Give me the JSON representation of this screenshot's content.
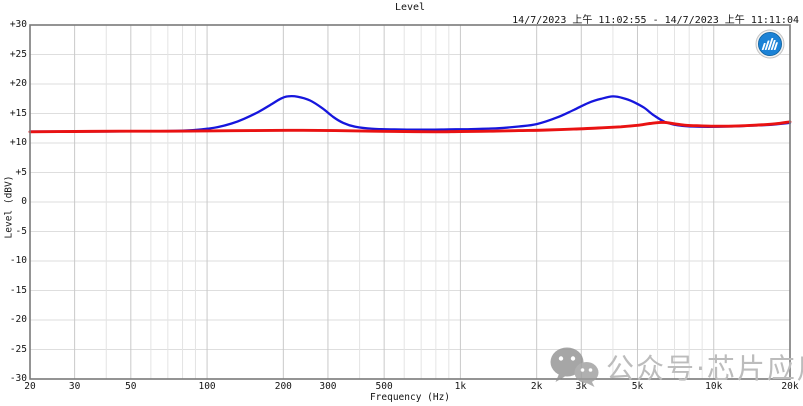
{
  "header": {
    "title": "Level",
    "timestamp": "14/7/2023 上午 11:02:55 - 14/7/2023 上午 11:11:04"
  },
  "logo": {
    "name": "audio-analyzer-logo",
    "color": "#1b82d6"
  },
  "watermark": {
    "text": "公众号·芯片应用"
  },
  "chart_data": {
    "type": "line",
    "title": "Level",
    "xlabel": "Frequency (Hz)",
    "ylabel": "Level (dBV)",
    "x_scale": "log",
    "xlim": [
      20,
      20000
    ],
    "ylim": [
      -30,
      30
    ],
    "y_tick_step": 5,
    "grid": "on",
    "legend": "none",
    "x_ticks": [
      {
        "f": 20,
        "label": "20"
      },
      {
        "f": 30,
        "label": "30"
      },
      {
        "f": 50,
        "label": "50"
      },
      {
        "f": 100,
        "label": "100"
      },
      {
        "f": 200,
        "label": "200"
      },
      {
        "f": 300,
        "label": "300"
      },
      {
        "f": 500,
        "label": "500"
      },
      {
        "f": 1000,
        "label": "1k"
      },
      {
        "f": 2000,
        "label": "2k"
      },
      {
        "f": 3000,
        "label": "3k"
      },
      {
        "f": 5000,
        "label": "5k"
      },
      {
        "f": 10000,
        "label": "10k"
      },
      {
        "f": 20000,
        "label": "20k"
      }
    ],
    "y_ticks": [
      {
        "v": 30,
        "label": "+30"
      },
      {
        "v": 25,
        "label": "+25"
      },
      {
        "v": 20,
        "label": "+20"
      },
      {
        "v": 15,
        "label": "+15"
      },
      {
        "v": 10,
        "label": "+10"
      },
      {
        "v": 5,
        "label": "+5"
      },
      {
        "v": 0,
        "label": "0"
      },
      {
        "v": -5,
        "label": "-5"
      },
      {
        "v": -10,
        "label": "-10"
      },
      {
        "v": -15,
        "label": "-15"
      },
      {
        "v": -20,
        "label": "-20"
      },
      {
        "v": -25,
        "label": "-25"
      },
      {
        "v": -30,
        "label": "-30"
      }
    ],
    "series": [
      {
        "name": "response-blue",
        "color": "#1616dd",
        "width": 2.3,
        "points": [
          [
            20,
            11.95
          ],
          [
            40,
            11.95
          ],
          [
            60,
            12.0
          ],
          [
            80,
            12.1
          ],
          [
            95,
            12.3
          ],
          [
            110,
            12.7
          ],
          [
            125,
            13.3
          ],
          [
            140,
            14.1
          ],
          [
            160,
            15.3
          ],
          [
            180,
            16.6
          ],
          [
            195,
            17.5
          ],
          [
            208,
            17.9
          ],
          [
            228,
            17.85
          ],
          [
            255,
            17.2
          ],
          [
            285,
            15.9
          ],
          [
            315,
            14.4
          ],
          [
            345,
            13.4
          ],
          [
            385,
            12.75
          ],
          [
            450,
            12.4
          ],
          [
            550,
            12.3
          ],
          [
            700,
            12.25
          ],
          [
            900,
            12.3
          ],
          [
            1100,
            12.35
          ],
          [
            1400,
            12.5
          ],
          [
            1700,
            12.8
          ],
          [
            2000,
            13.2
          ],
          [
            2400,
            14.3
          ],
          [
            2800,
            15.6
          ],
          [
            3200,
            16.8
          ],
          [
            3600,
            17.5
          ],
          [
            4000,
            17.9
          ],
          [
            4400,
            17.6
          ],
          [
            4800,
            17.0
          ],
          [
            5300,
            16.0
          ],
          [
            5800,
            14.7
          ],
          [
            6400,
            13.6
          ],
          [
            7200,
            13.0
          ],
          [
            8200,
            12.8
          ],
          [
            9500,
            12.75
          ],
          [
            11500,
            12.8
          ],
          [
            14000,
            12.95
          ],
          [
            17000,
            13.1
          ],
          [
            20000,
            13.4
          ]
        ]
      },
      {
        "name": "response-red",
        "color": "#e91212",
        "width": 2.9,
        "points": [
          [
            20,
            11.9
          ],
          [
            30,
            11.95
          ],
          [
            45,
            12.0
          ],
          [
            70,
            12.0
          ],
          [
            100,
            12.05
          ],
          [
            150,
            12.1
          ],
          [
            220,
            12.15
          ],
          [
            320,
            12.1
          ],
          [
            450,
            12.0
          ],
          [
            600,
            11.95
          ],
          [
            800,
            11.9
          ],
          [
            1000,
            11.95
          ],
          [
            1300,
            12.0
          ],
          [
            1700,
            12.1
          ],
          [
            2200,
            12.2
          ],
          [
            2800,
            12.35
          ],
          [
            3500,
            12.55
          ],
          [
            4300,
            12.75
          ],
          [
            5000,
            13.0
          ],
          [
            5600,
            13.3
          ],
          [
            6300,
            13.5
          ],
          [
            7000,
            13.25
          ],
          [
            7800,
            13.0
          ],
          [
            9000,
            12.9
          ],
          [
            10500,
            12.85
          ],
          [
            12500,
            12.9
          ],
          [
            15000,
            13.05
          ],
          [
            17500,
            13.25
          ],
          [
            20000,
            13.6
          ]
        ]
      }
    ]
  }
}
